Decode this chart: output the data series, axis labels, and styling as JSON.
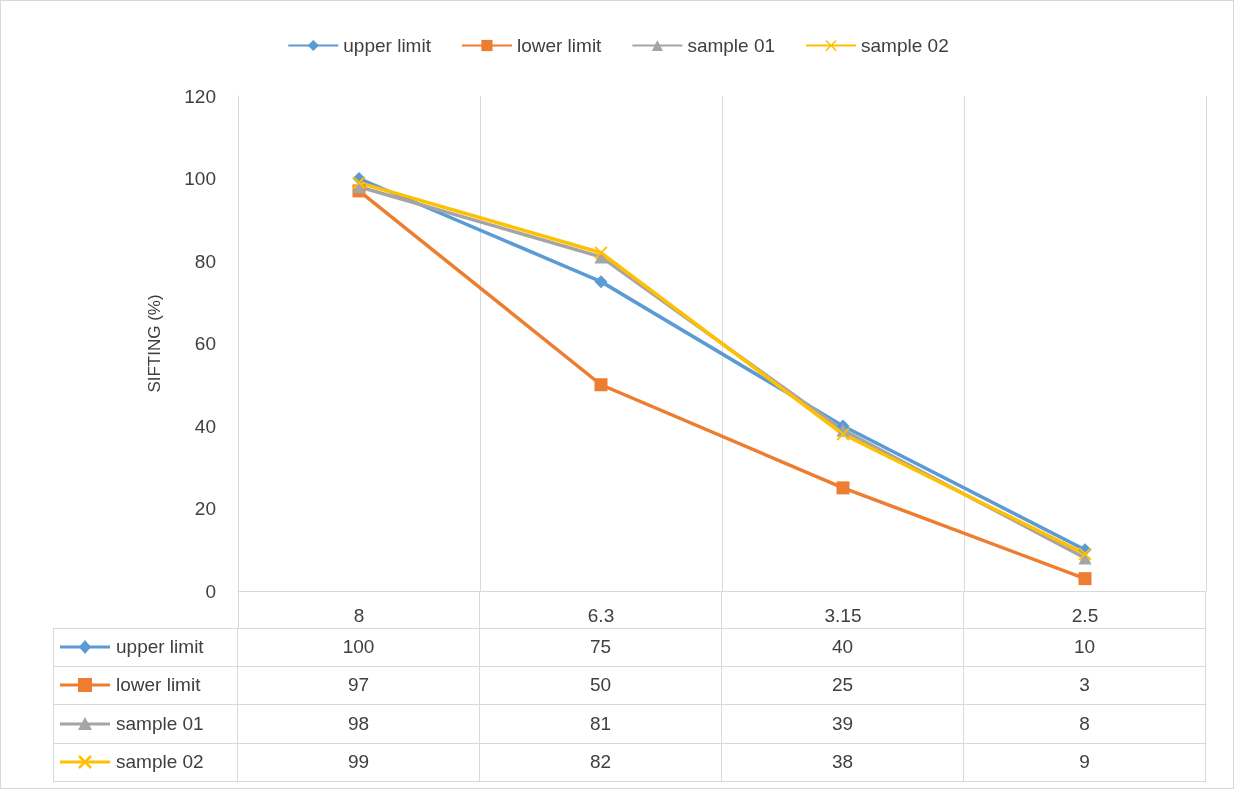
{
  "chart_data": {
    "type": "line",
    "ylabel": "SIFTING (%)",
    "categories": [
      "8",
      "6.3",
      "3.15",
      "2.5"
    ],
    "series": [
      {
        "name": "upper limit",
        "color": "#5b9bd5",
        "marker": "diamond",
        "values": [
          100,
          75,
          40,
          10
        ]
      },
      {
        "name": "lower limit",
        "color": "#ed7d31",
        "marker": "square",
        "values": [
          97,
          50,
          25,
          3
        ]
      },
      {
        "name": "sample 01",
        "color": "#a5a5a5",
        "marker": "triangle",
        "values": [
          98,
          81,
          39,
          8
        ]
      },
      {
        "name": "sample 02",
        "color": "#ffc000",
        "marker": "cross",
        "values": [
          99,
          82,
          38,
          9
        ]
      }
    ],
    "ylim": [
      0,
      120
    ],
    "yticks": [
      0,
      20,
      40,
      60,
      80,
      100,
      120
    ],
    "grid": "x",
    "legend": "top",
    "data_labels": true
  }
}
